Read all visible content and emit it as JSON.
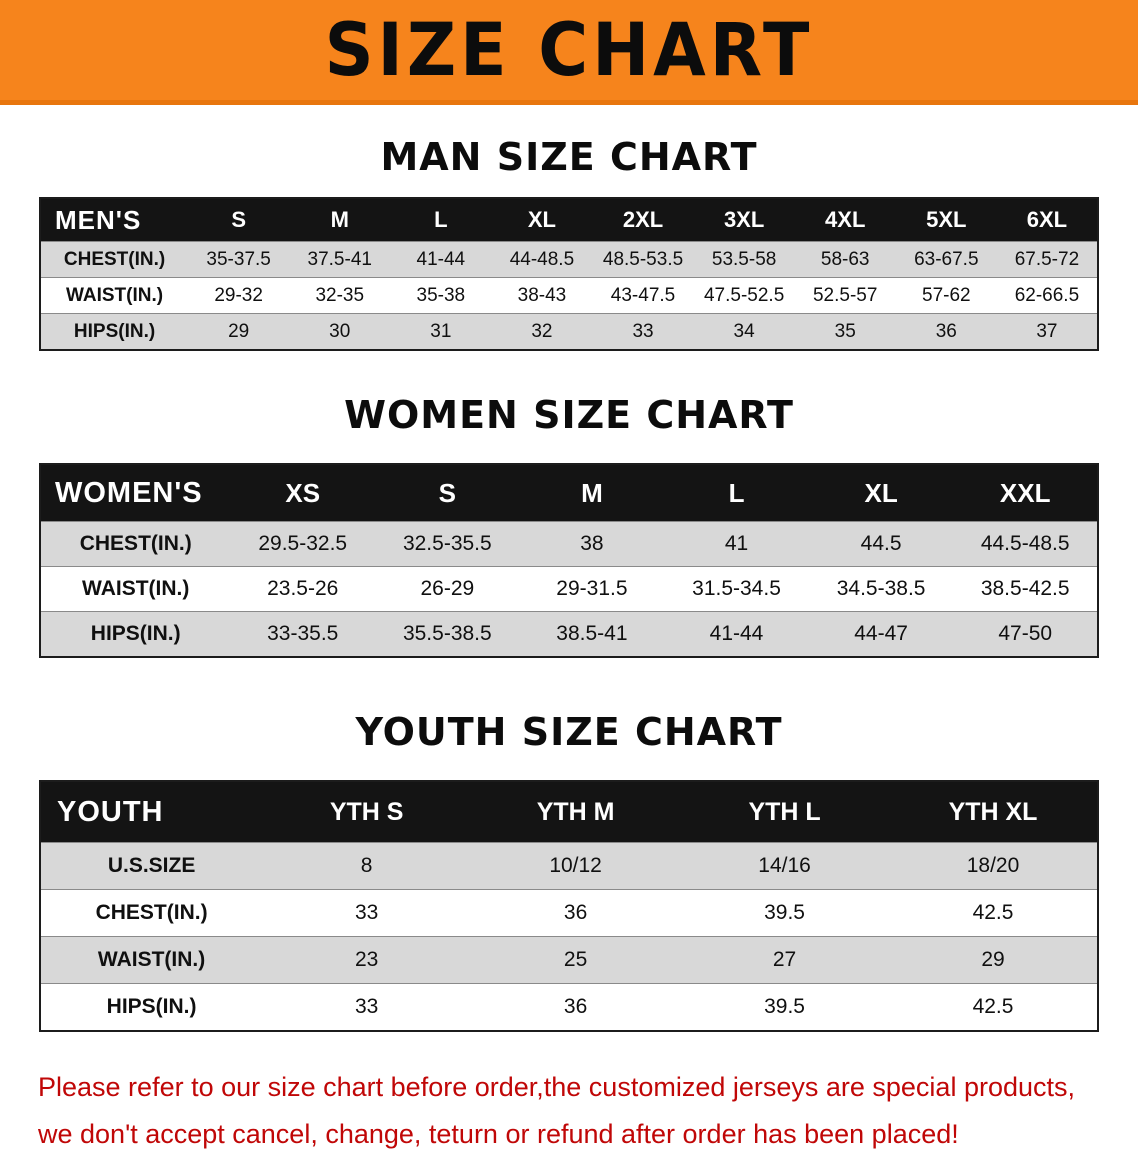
{
  "banner": {
    "title": "SIZE CHART",
    "bg_color": "#f6841c"
  },
  "men": {
    "heading": "MAN SIZE CHART",
    "header": [
      "MEN'S",
      "S",
      "M",
      "L",
      "XL",
      "2XL",
      "3XL",
      "4XL",
      "5XL",
      "6XL"
    ],
    "rows": [
      {
        "label": "CHEST(IN.)",
        "values": [
          "35-37.5",
          "37.5-41",
          "41-44",
          "44-48.5",
          "48.5-53.5",
          "53.5-58",
          "58-63",
          "63-67.5",
          "67.5-72"
        ]
      },
      {
        "label": "WAIST(IN.)",
        "values": [
          "29-32",
          "32-35",
          "35-38",
          "38-43",
          "43-47.5",
          "47.5-52.5",
          "52.5-57",
          "57-62",
          "62-66.5"
        ]
      },
      {
        "label": "HIPS(IN.)",
        "values": [
          "29",
          "30",
          "31",
          "32",
          "33",
          "34",
          "35",
          "36",
          "37"
        ]
      }
    ]
  },
  "women": {
    "heading": "WOMEN SIZE CHART",
    "header": [
      "WOMEN'S",
      "XS",
      "S",
      "M",
      "L",
      "XL",
      "XXL"
    ],
    "rows": [
      {
        "label": "CHEST(IN.)",
        "values": [
          "29.5-32.5",
          "32.5-35.5",
          "38",
          "41",
          "44.5",
          "44.5-48.5"
        ]
      },
      {
        "label": "WAIST(IN.)",
        "values": [
          "23.5-26",
          "26-29",
          "29-31.5",
          "31.5-34.5",
          "34.5-38.5",
          "38.5-42.5"
        ]
      },
      {
        "label": "HIPS(IN.)",
        "values": [
          "33-35.5",
          "35.5-38.5",
          "38.5-41",
          "41-44",
          "44-47",
          "47-50"
        ]
      }
    ]
  },
  "youth": {
    "heading": "YOUTH SIZE CHART",
    "header": [
      "YOUTH",
      "YTH S",
      "YTH M",
      "YTH L",
      "YTH XL"
    ],
    "rows": [
      {
        "label": "U.S.SIZE",
        "values": [
          "8",
          "10/12",
          "14/16",
          "18/20"
        ]
      },
      {
        "label": "CHEST(IN.)",
        "values": [
          "33",
          "36",
          "39.5",
          "42.5"
        ]
      },
      {
        "label": "WAIST(IN.)",
        "values": [
          "23",
          "25",
          "27",
          "29"
        ]
      },
      {
        "label": "HIPS(IN.)",
        "values": [
          "33",
          "36",
          "39.5",
          "42.5"
        ]
      }
    ]
  },
  "note": {
    "line1": "Please refer to our size chart before order,the customized jerseys are special products,",
    "line2": "we don't accept cancel, change, teturn or refund after order has been placed!",
    "color": "#c00707"
  }
}
